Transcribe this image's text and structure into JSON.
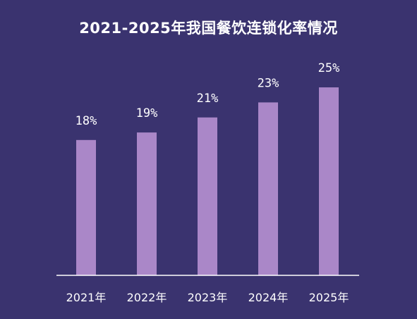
{
  "chart_data": {
    "type": "bar",
    "title": "2021-2025年我国餐饮连锁化率情况",
    "categories": [
      "2021年",
      "2022年",
      "2023年",
      "2024年",
      "2025年"
    ],
    "values": [
      18,
      19,
      21,
      23,
      25
    ],
    "value_labels": [
      "18%",
      "19%",
      "21%",
      "23%",
      "25%"
    ],
    "xlabel": "",
    "ylabel": "",
    "ylim": [
      0,
      31
    ],
    "grid": false,
    "legend": "none",
    "colors": {
      "background": "#3a336f",
      "bar": "#aa87c8",
      "axis": "#ffffff",
      "text": "#ffffff"
    }
  }
}
